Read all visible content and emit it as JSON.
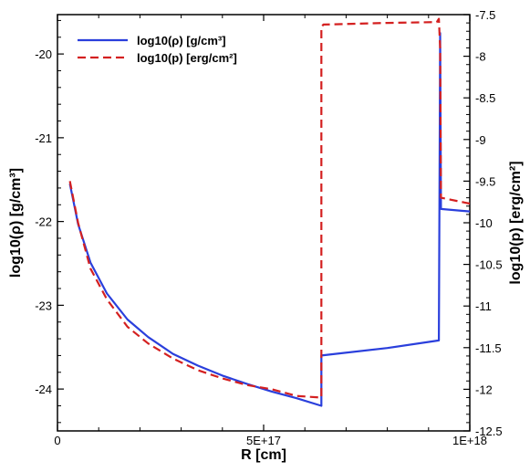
{
  "chart_data": {
    "type": "line",
    "xlabel": "R [cm]",
    "ylabel_left": "log10(ρ) [g/cm³]",
    "ylabel_right": "log10(p) [erg/cm²]",
    "xlim": [
      0,
      1e+18
    ],
    "ylim_left": [
      -24.5,
      -19.53
    ],
    "ylim_right": [
      -12.5,
      -7.5
    ],
    "x_ticks": [
      {
        "value": 0,
        "label": "0"
      },
      {
        "value": 5e+17,
        "label": "5E+17"
      },
      {
        "value": 1e+18,
        "label": "1E+18"
      }
    ],
    "y_left_ticks": [
      {
        "value": -20,
        "label": "-20"
      },
      {
        "value": -21,
        "label": "-21"
      },
      {
        "value": -22,
        "label": "-22"
      },
      {
        "value": -23,
        "label": "-23"
      },
      {
        "value": -24,
        "label": "-24"
      }
    ],
    "y_right_ticks": [
      {
        "value": -7.5,
        "label": "-7.5"
      },
      {
        "value": -8,
        "label": "-8"
      },
      {
        "value": -8.5,
        "label": "-8.5"
      },
      {
        "value": -9,
        "label": "-9"
      },
      {
        "value": -9.5,
        "label": "-9.5"
      },
      {
        "value": -10,
        "label": "-10"
      },
      {
        "value": -10.5,
        "label": "-10.5"
      },
      {
        "value": -11,
        "label": "-11"
      },
      {
        "value": -11.5,
        "label": "-11.5"
      },
      {
        "value": -12,
        "label": "-12"
      },
      {
        "value": -12.5,
        "label": "-12.5"
      }
    ],
    "legend_position": "top-left",
    "series": [
      {
        "name": "log10(ρ) [g/cm³]",
        "axis": "left",
        "color": "#2a3fdc",
        "style": "solid",
        "x": [
          3e+16,
          5e+16,
          8e+16,
          1.2e+17,
          1.7e+17,
          2.2e+17,
          2.8e+17,
          3.4e+17,
          4e+17,
          4.6e+17,
          5.2e+17,
          5.8e+17,
          6.4e+17,
          6.4e+17,
          8e+17,
          9.25e+17,
          9.28e+17,
          9.3e+17,
          1e+18
        ],
        "y": [
          -21.55,
          -22.03,
          -22.49,
          -22.86,
          -23.17,
          -23.38,
          -23.58,
          -23.72,
          -23.84,
          -23.94,
          -24.03,
          -24.11,
          -24.2,
          -23.6,
          -23.51,
          -23.42,
          -19.75,
          -21.85,
          -21.88
        ]
      },
      {
        "name": "log10(p) [erg/cm²]",
        "axis": "right",
        "color": "#d42020",
        "style": "dashed",
        "x": [
          3e+16,
          5e+16,
          8e+16,
          1.2e+17,
          1.7e+17,
          2.2e+17,
          2.8e+17,
          3.4e+17,
          4e+17,
          4.6e+17,
          5.2e+17,
          5.8e+17,
          6.4e+17,
          6.4e+17,
          6.45e+17,
          8e+17,
          9.2e+17,
          9.25e+17,
          9.28e+17,
          9.3e+17,
          1e+18
        ],
        "y": [
          -9.5,
          -10.0,
          -10.55,
          -10.92,
          -11.25,
          -11.45,
          -11.63,
          -11.77,
          -11.87,
          -11.95,
          -12.0,
          -12.08,
          -12.1,
          -7.65,
          -7.62,
          -7.6,
          -7.59,
          -7.55,
          -7.9,
          -9.7,
          -9.77
        ]
      }
    ]
  }
}
